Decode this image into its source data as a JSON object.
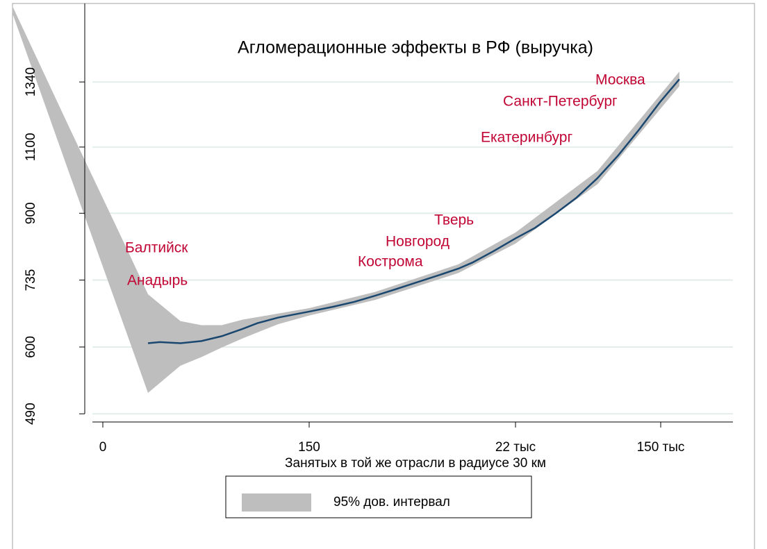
{
  "chart_data": {
    "type": "line",
    "title": "Агломерационные эффекты в РФ (выручка)",
    "x_label": "Занятых в той же отрасли в радиусе 30 км",
    "x_scale": "log1p",
    "y_scale": "log",
    "xlim": [
      -0.22,
      390000
    ],
    "xticks": [
      0,
      150,
      {
        "value": 22000,
        "label": "22 тыс"
      },
      {
        "value": 150000,
        "label": "150 тыс"
      }
    ],
    "ylim": [
      478,
      1700
    ],
    "yticks": [
      490,
      600,
      735,
      900,
      1100,
      1340
    ],
    "grid": true,
    "legend": "bottom",
    "series": [
      {
        "name": "95% дов. интервал",
        "color": "#bebebe",
        "x": [
          -0.89,
          -0.56,
          0.72,
          2,
          5.6,
          10,
          17,
          29,
          70,
          150,
          741,
          5550,
          22000,
          65000,
          192000
        ],
        "upper": [
          1691,
          1169,
          817,
          704,
          649,
          641,
          641,
          652,
          664,
          675,
          709,
          771,
          849,
          1023,
          1383
        ],
        "lower": [
          1656,
          1018,
          634,
          522,
          567,
          582,
          599,
          616,
          643,
          660,
          692,
          751,
          821,
          983,
          1323
        ]
      },
      {
        "color": "#1a476f",
        "x": [
          2,
          3,
          5.6,
          10,
          17,
          29,
          42,
          70,
          150,
          270,
          447,
          741,
          1225,
          2027,
          3355,
          5550,
          7770,
          12860,
          22000,
          28460,
          37500,
          49400,
          65000,
          85700,
          112800,
          148700,
          192000
        ],
        "values": [
          607,
          609,
          607,
          611,
          620,
          634,
          645,
          656,
          668,
          678,
          688,
          701,
          715,
          730,
          745,
          761,
          775,
          802,
          834,
          861,
          900,
          944,
          1001,
          1073,
          1160,
          1261,
          1351
        ]
      }
    ],
    "annotations": [
      "Москва",
      "Санкт-Петербург",
      "Екатеринбург",
      "Тверь",
      "Новгород",
      "Кострома",
      "Балтийск",
      "Анадырь"
    ]
  }
}
